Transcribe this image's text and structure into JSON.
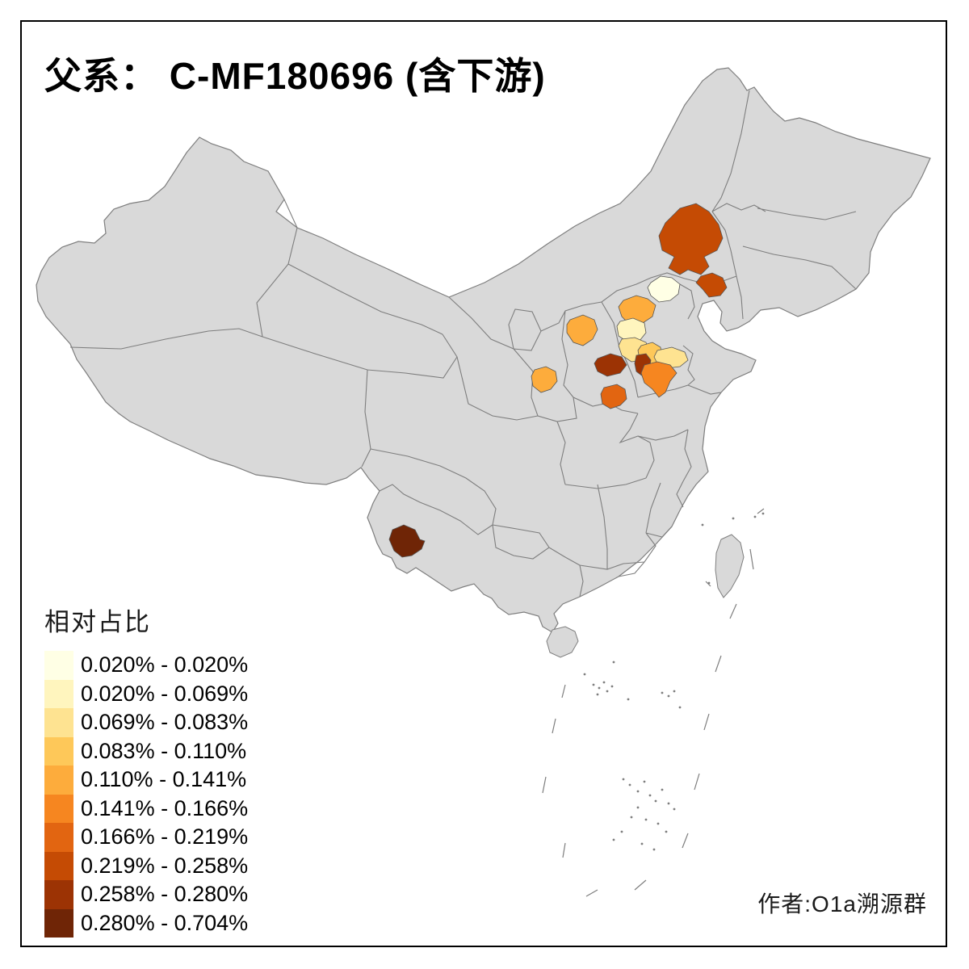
{
  "title": "父系： C-MF180696 (含下游)",
  "attribution": "作者:O1a溯源群",
  "legend": {
    "title": "相对占比",
    "classes": [
      {
        "label": "0.020% - 0.020%",
        "color": "#FFFFE5"
      },
      {
        "label": "0.020% - 0.069%",
        "color": "#FFF5BE"
      },
      {
        "label": "0.069% - 0.083%",
        "color": "#FEE391"
      },
      {
        "label": "0.083% - 0.110%",
        "color": "#FEC859"
      },
      {
        "label": "0.110% - 0.141%",
        "color": "#FDAC3C"
      },
      {
        "label": "0.141% - 0.166%",
        "color": "#F68620"
      },
      {
        "label": "0.166% - 0.219%",
        "color": "#E26511"
      },
      {
        "label": "0.219% - 0.258%",
        "color": "#C54B04"
      },
      {
        "label": "0.258% - 0.280%",
        "color": "#9C3304"
      },
      {
        "label": "0.280% - 0.704%",
        "color": "#6F2506"
      }
    ]
  },
  "map": {
    "base_fill": "#D9D9D9",
    "border_color": "#7E7E7E",
    "region_stroke": "#555555",
    "regions": [
      {
        "id": "chifeng",
        "location": "southeast Inner Mongolia (large region)",
        "class_index": 7
      },
      {
        "id": "chaoyang",
        "location": "west Liaoning (small region)",
        "class_index": 7
      },
      {
        "id": "beijing",
        "location": "Beijing area",
        "class_index": 0
      },
      {
        "id": "zhangjiakou",
        "location": "northwest Hebei",
        "class_index": 4
      },
      {
        "id": "baoding-n",
        "location": "central-west Hebei (upper pale)",
        "class_index": 1
      },
      {
        "id": "baoding-s",
        "location": "central-west Hebei (lower pale)",
        "class_index": 2
      },
      {
        "id": "shijiazhuang",
        "location": "south-central Hebei",
        "class_index": 3
      },
      {
        "id": "hengshui",
        "location": "southeast Hebei / northwest Shandong",
        "class_index": 2
      },
      {
        "id": "xinzhou",
        "location": "north Shanxi",
        "class_index": 4
      },
      {
        "id": "jinzhong",
        "location": "central Shanxi (dark region)",
        "class_index": 8
      },
      {
        "id": "xingtai",
        "location": "south Hebei (dark narrow region)",
        "class_index": 8
      },
      {
        "id": "handan",
        "location": "south Hebei / north Henan (orange blob)",
        "class_index": 5
      },
      {
        "id": "yuncheng",
        "location": "southwest Shanxi",
        "class_index": 6
      },
      {
        "id": "yanan",
        "location": "central Shaanxi",
        "class_index": 4
      },
      {
        "id": "baoshan",
        "location": "west Yunnan (dark brown region)",
        "class_index": 9
      }
    ]
  },
  "chart_data": {
    "type": "heatmap",
    "subtype": "choropleth-map-of-china",
    "title": "父系： C-MF180696 (含下游)",
    "legend_title": "相对占比",
    "value_unit": "%",
    "class_breaks": [
      0.02,
      0.02,
      0.069,
      0.083,
      0.11,
      0.141,
      0.166,
      0.219,
      0.258,
      0.28,
      0.704
    ],
    "class_labels": [
      "0.020% - 0.020%",
      "0.020% - 0.069%",
      "0.069% - 0.083%",
      "0.083% - 0.110%",
      "0.110% - 0.141%",
      "0.141% - 0.166%",
      "0.166% - 0.219%",
      "0.219% - 0.258%",
      "0.258% - 0.280%",
      "0.280% - 0.704%"
    ],
    "class_colors": [
      "#FFFFE5",
      "#FFF5BE",
      "#FEE391",
      "#FEC859",
      "#FDAC3C",
      "#F68620",
      "#E26511",
      "#C54B04",
      "#9C3304",
      "#6F2506"
    ],
    "uncolored_fill": "#D9D9D9",
    "highlighted_regions": [
      {
        "location": "southeast Inner Mongolia (large)",
        "range": "0.219% - 0.258%"
      },
      {
        "location": "west Liaoning (small)",
        "range": "0.219% - 0.258%"
      },
      {
        "location": "Beijing area",
        "range": "0.020% - 0.020%"
      },
      {
        "location": "northwest Hebei",
        "range": "0.110% - 0.141%"
      },
      {
        "location": "central-west Hebei (upper)",
        "range": "0.020% - 0.069%"
      },
      {
        "location": "central-west Hebei (lower)",
        "range": "0.069% - 0.083%"
      },
      {
        "location": "south-central Hebei",
        "range": "0.083% - 0.110%"
      },
      {
        "location": "southeast Hebei / NW Shandong",
        "range": "0.069% - 0.083%"
      },
      {
        "location": "north Shanxi",
        "range": "0.110% - 0.141%"
      },
      {
        "location": "central Shanxi (dark)",
        "range": "0.258% - 0.280%"
      },
      {
        "location": "south Hebei (dark narrow)",
        "range": "0.258% - 0.280%"
      },
      {
        "location": "south Hebei / north Henan",
        "range": "0.141% - 0.166%"
      },
      {
        "location": "southwest Shanxi",
        "range": "0.166% - 0.219%"
      },
      {
        "location": "central Shaanxi",
        "range": "0.110% - 0.141%"
      },
      {
        "location": "west Yunnan",
        "range": "0.280% - 0.704%"
      }
    ],
    "legend_position": "bottom-left",
    "grid": false
  }
}
